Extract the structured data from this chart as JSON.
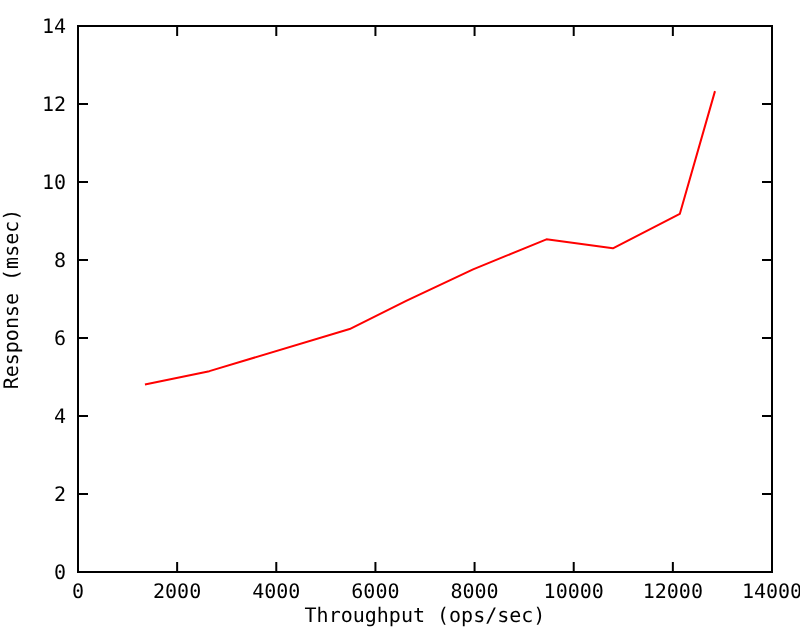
{
  "chart_data": {
    "type": "line",
    "xlabel": "Throughput (ops/sec)",
    "ylabel": "Response (msec)",
    "x": [
      1350,
      2650,
      5480,
      6620,
      7970,
      9450,
      10790,
      12140,
      12850
    ],
    "series": [
      {
        "color": "#ff0000",
        "values": [
          4.81,
          5.15,
          6.23,
          6.95,
          7.76,
          8.53,
          8.3,
          9.18,
          12.33
        ]
      }
    ],
    "xlim": [
      0,
      14000
    ],
    "xticks": [
      0,
      2000,
      4000,
      6000,
      8000,
      10000,
      12000,
      14000
    ],
    "ylim": [
      0,
      14
    ],
    "yticks": [
      0,
      2,
      4,
      6,
      8,
      10,
      12,
      14
    ],
    "grid": false
  }
}
